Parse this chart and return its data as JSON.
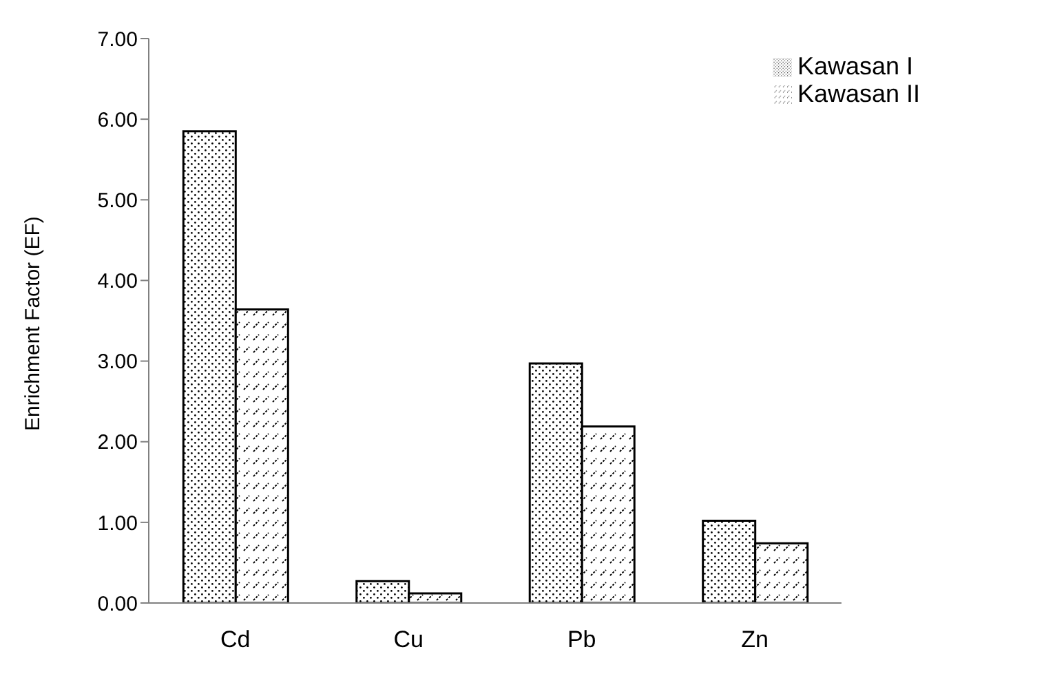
{
  "chart_data": {
    "type": "bar",
    "ylabel": "Enrichment Factor (EF)",
    "categories": [
      "Cd",
      "Cu",
      "Pb",
      "Zn"
    ],
    "series": [
      {
        "name": "Kawasan I",
        "color": "#000000",
        "values": [
          5.85,
          0.27,
          2.97,
          1.02
        ]
      },
      {
        "name": "Kawasan II",
        "color": "#000000",
        "values": [
          3.64,
          0.12,
          2.19,
          0.74
        ]
      }
    ],
    "ylim": [
      0,
      7
    ],
    "yticks": [
      {
        "value": 0,
        "label": "0.00"
      },
      {
        "value": 1,
        "label": "1.00"
      },
      {
        "value": 2,
        "label": "2.00"
      },
      {
        "value": 3,
        "label": "3.00"
      },
      {
        "value": 4,
        "label": "4.00"
      },
      {
        "value": 5,
        "label": "5.00"
      },
      {
        "value": 6,
        "label": "6.00"
      },
      {
        "value": 7,
        "label": "7.00"
      }
    ],
    "grid": false,
    "legend": "top right"
  }
}
